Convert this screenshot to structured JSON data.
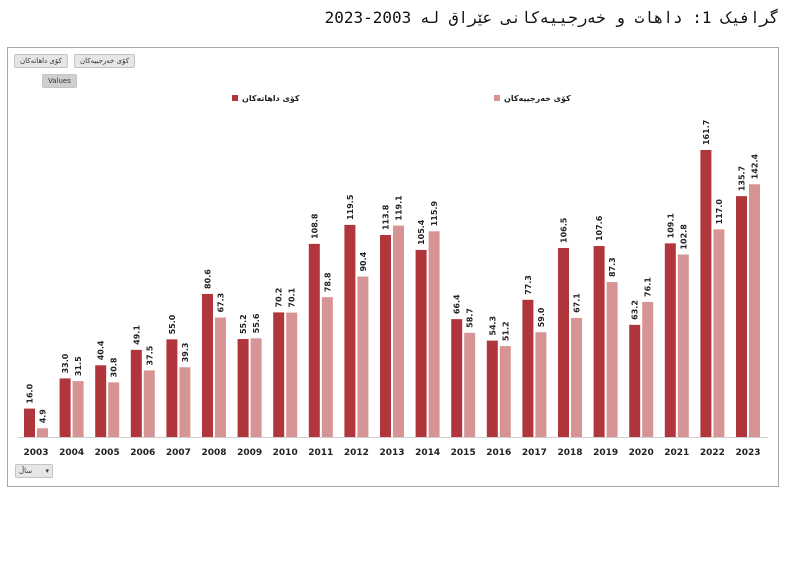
{
  "page": {
    "title": "گرافیک 1:  داهات و خەرجییەکانی عێراق لە 2003-2023"
  },
  "controls": {
    "field_chip_1": "کۆی داهاتەکان",
    "field_chip_2": "کۆی خەرجییەکان",
    "values_chip": "Values",
    "axis_field": "ساڵ"
  },
  "colors": {
    "revenue": "#b0363b",
    "expenditure": "#d69495"
  },
  "chart_data": {
    "type": "bar",
    "title": "",
    "xlabel": "",
    "ylabel": "",
    "ylim": [
      0,
      170
    ],
    "grid": false,
    "legend_position": "top",
    "categories": [
      "2003",
      "2004",
      "2005",
      "2006",
      "2007",
      "2008",
      "2009",
      "2010",
      "2011",
      "2012",
      "2013",
      "2014",
      "2015",
      "2016",
      "2017",
      "2018",
      "2019",
      "2020",
      "2021",
      "2022",
      "2023"
    ],
    "series": [
      {
        "name": "کۆی داهاتەکان",
        "values": [
          16.0,
          33.0,
          40.4,
          49.1,
          55.0,
          80.6,
          55.2,
          70.2,
          108.8,
          119.5,
          113.8,
          105.4,
          66.4,
          54.3,
          77.3,
          106.5,
          107.6,
          63.2,
          109.1,
          161.7,
          135.7
        ]
      },
      {
        "name": "کۆی خەرجییەکان",
        "values": [
          4.9,
          31.5,
          30.8,
          37.5,
          39.3,
          67.3,
          55.6,
          70.1,
          78.8,
          90.4,
          119.1,
          115.9,
          58.7,
          51.2,
          59.0,
          67.1,
          87.3,
          76.1,
          102.8,
          117.0,
          142.4
        ]
      }
    ]
  }
}
